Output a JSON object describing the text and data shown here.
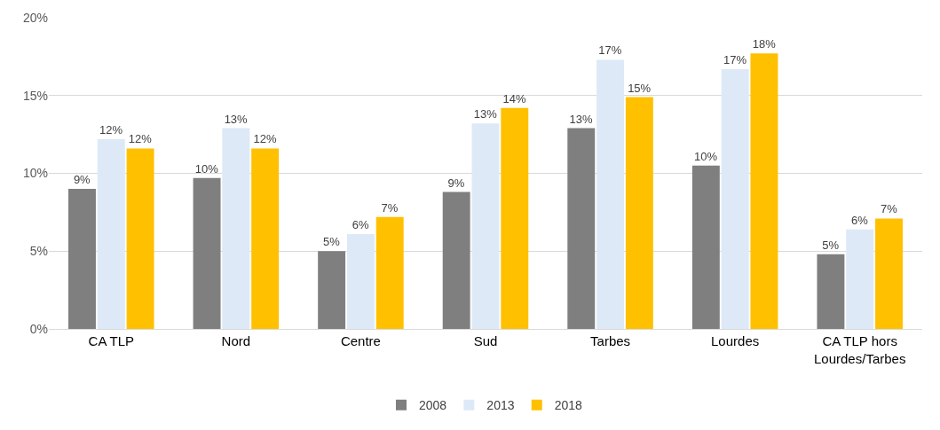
{
  "chart_data": {
    "type": "bar",
    "categories": [
      "CA TLP",
      "Nord",
      "Centre",
      "Sud",
      "Tarbes",
      "Lourdes",
      "CA TLP hors Lourdes/Tarbes"
    ],
    "series": [
      {
        "name": "2008",
        "color": "#7f7f7f",
        "values": [
          9.0,
          9.7,
          5.0,
          8.8,
          12.9,
          10.5,
          4.8
        ],
        "value_labels": [
          "9%",
          "10%",
          "5%",
          "9%",
          "13%",
          "10%",
          "5%"
        ]
      },
      {
        "name": "2013",
        "color": "#dde9f7",
        "values": [
          12.2,
          12.9,
          6.1,
          13.2,
          17.3,
          16.7,
          6.4
        ],
        "value_labels": [
          "12%",
          "13%",
          "6%",
          "13%",
          "17%",
          "17%",
          "6%"
        ]
      },
      {
        "name": "2018",
        "color": "#ffc000",
        "values": [
          11.6,
          11.6,
          7.2,
          14.2,
          14.9,
          17.7,
          7.1
        ],
        "value_labels": [
          "12%",
          "12%",
          "7%",
          "14%",
          "15%",
          "18%",
          "7%"
        ]
      }
    ],
    "ylim": [
      0,
      20
    ],
    "yticks": [
      {
        "value": 0,
        "label": "0%"
      },
      {
        "value": 5,
        "label": "5%"
      },
      {
        "value": 10,
        "label": "10%"
      },
      {
        "value": 15,
        "label": "15%"
      },
      {
        "value": 20,
        "label": "20%"
      }
    ],
    "grid": "y",
    "legend": "bottom"
  }
}
